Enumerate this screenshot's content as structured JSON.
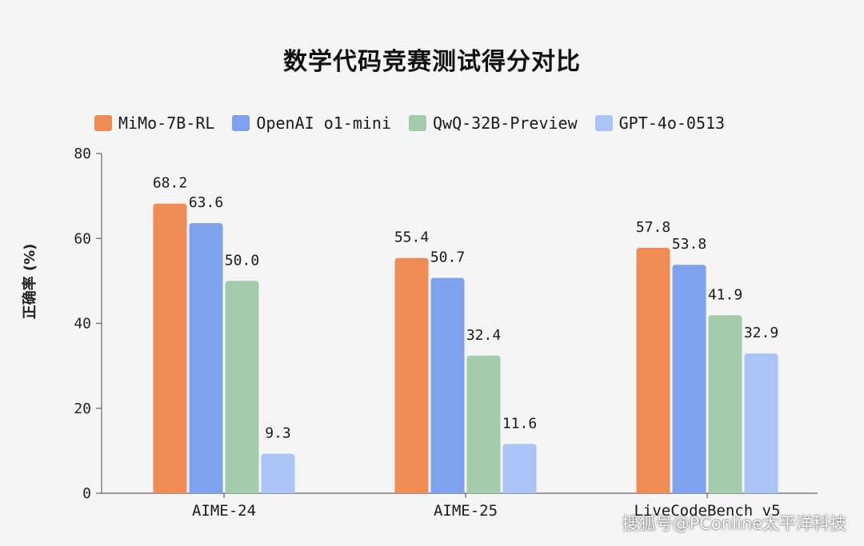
{
  "chart_data": {
    "type": "bar",
    "title": "数学代码竞赛测试得分对比",
    "ylabel": "正确率 (%)",
    "xlabel": "",
    "ylim": [
      0,
      80
    ],
    "yticks": [
      0,
      20,
      40,
      60,
      80
    ],
    "grid": false,
    "legend_position": "top-left",
    "categories": [
      "AIME-24",
      "AIME-25",
      "LiveCodeBench v5"
    ],
    "series": [
      {
        "name": "MiMo-7B-RL",
        "color": "#ef8c55",
        "values": [
          68.2,
          55.4,
          57.8
        ],
        "labels": [
          "68.2",
          "55.4",
          "57.8"
        ]
      },
      {
        "name": "OpenAI o1-mini",
        "color": "#7ea2ee",
        "values": [
          63.6,
          50.7,
          53.8
        ],
        "labels": [
          "63.6",
          "50.7",
          "53.8"
        ]
      },
      {
        "name": "QwQ-32B-Preview",
        "color": "#a3ccad",
        "values": [
          50.0,
          32.4,
          41.9
        ],
        "labels": [
          "50.0",
          "32.4",
          "41.9"
        ]
      },
      {
        "name": "GPT-4o-0513",
        "color": "#a9c4f5",
        "values": [
          9.3,
          11.6,
          32.9
        ],
        "labels": [
          "9.3",
          "11.6",
          "32.9"
        ]
      }
    ]
  },
  "watermark": "搜狐号@PConline太平洋科技"
}
